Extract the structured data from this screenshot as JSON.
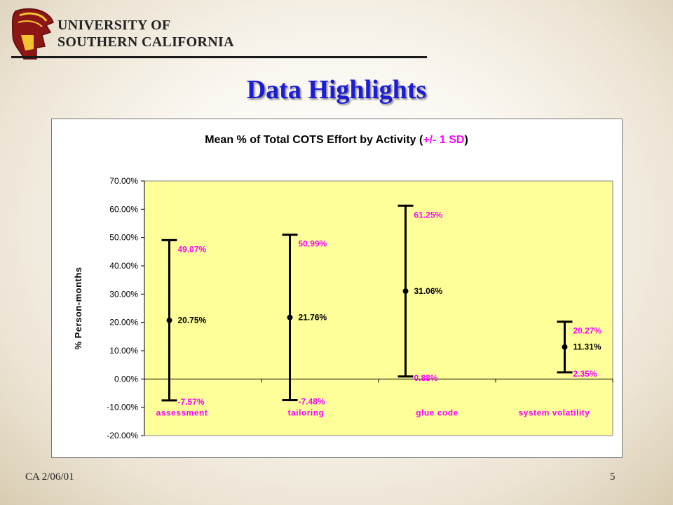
{
  "header": {
    "logo_icon": "trojan-helmet-logo",
    "university_line1": "UNIVERSITY OF",
    "university_line2": "SOUTHERN CALIFORNIA"
  },
  "slide": {
    "title": "Data Highlights",
    "footer_left": "CA 2/06/01",
    "page_number": "5"
  },
  "colors": {
    "title": "#1c1cd6",
    "plot_area": "#ffff99",
    "accent_label": "#ff00ff",
    "error_bar": "#000000"
  },
  "chart_data": {
    "type": "error-bar",
    "title_prefix": "Mean % of Total COTS Effort by Activity (",
    "title_accent": "+/- 1 SD",
    "title_suffix": ")",
    "ylabel": "% Person-months",
    "xlabel": "",
    "ylim": [
      -20,
      70
    ],
    "yticks": [
      "70.00%",
      "60.00%",
      "50.00%",
      "40.00%",
      "30.00%",
      "20.00%",
      "10.00%",
      "0.00%",
      "-10.00%",
      "-20.00%"
    ],
    "ytick_values": [
      70,
      60,
      50,
      40,
      30,
      20,
      10,
      0,
      -10,
      -20
    ],
    "grid": false,
    "legend": "none",
    "categories": [
      "assessment",
      "tailoring",
      "glue code",
      "system volatility"
    ],
    "series": [
      {
        "mean": [
          20.75,
          21.76,
          31.06,
          11.31
        ],
        "upper": [
          49.07,
          50.99,
          61.25,
          20.27
        ],
        "lower": [
          -7.57,
          -7.48,
          0.88,
          2.35
        ],
        "mean_labels": [
          "20.75%",
          "21.76%",
          "31.06%",
          "11.31%"
        ],
        "upper_labels": [
          "49.07%",
          "50.99%",
          "61.25%",
          "20.27%"
        ],
        "lower_labels": [
          "-7.57%",
          "-7.48%",
          "0.88%",
          "2.35%"
        ]
      }
    ]
  }
}
